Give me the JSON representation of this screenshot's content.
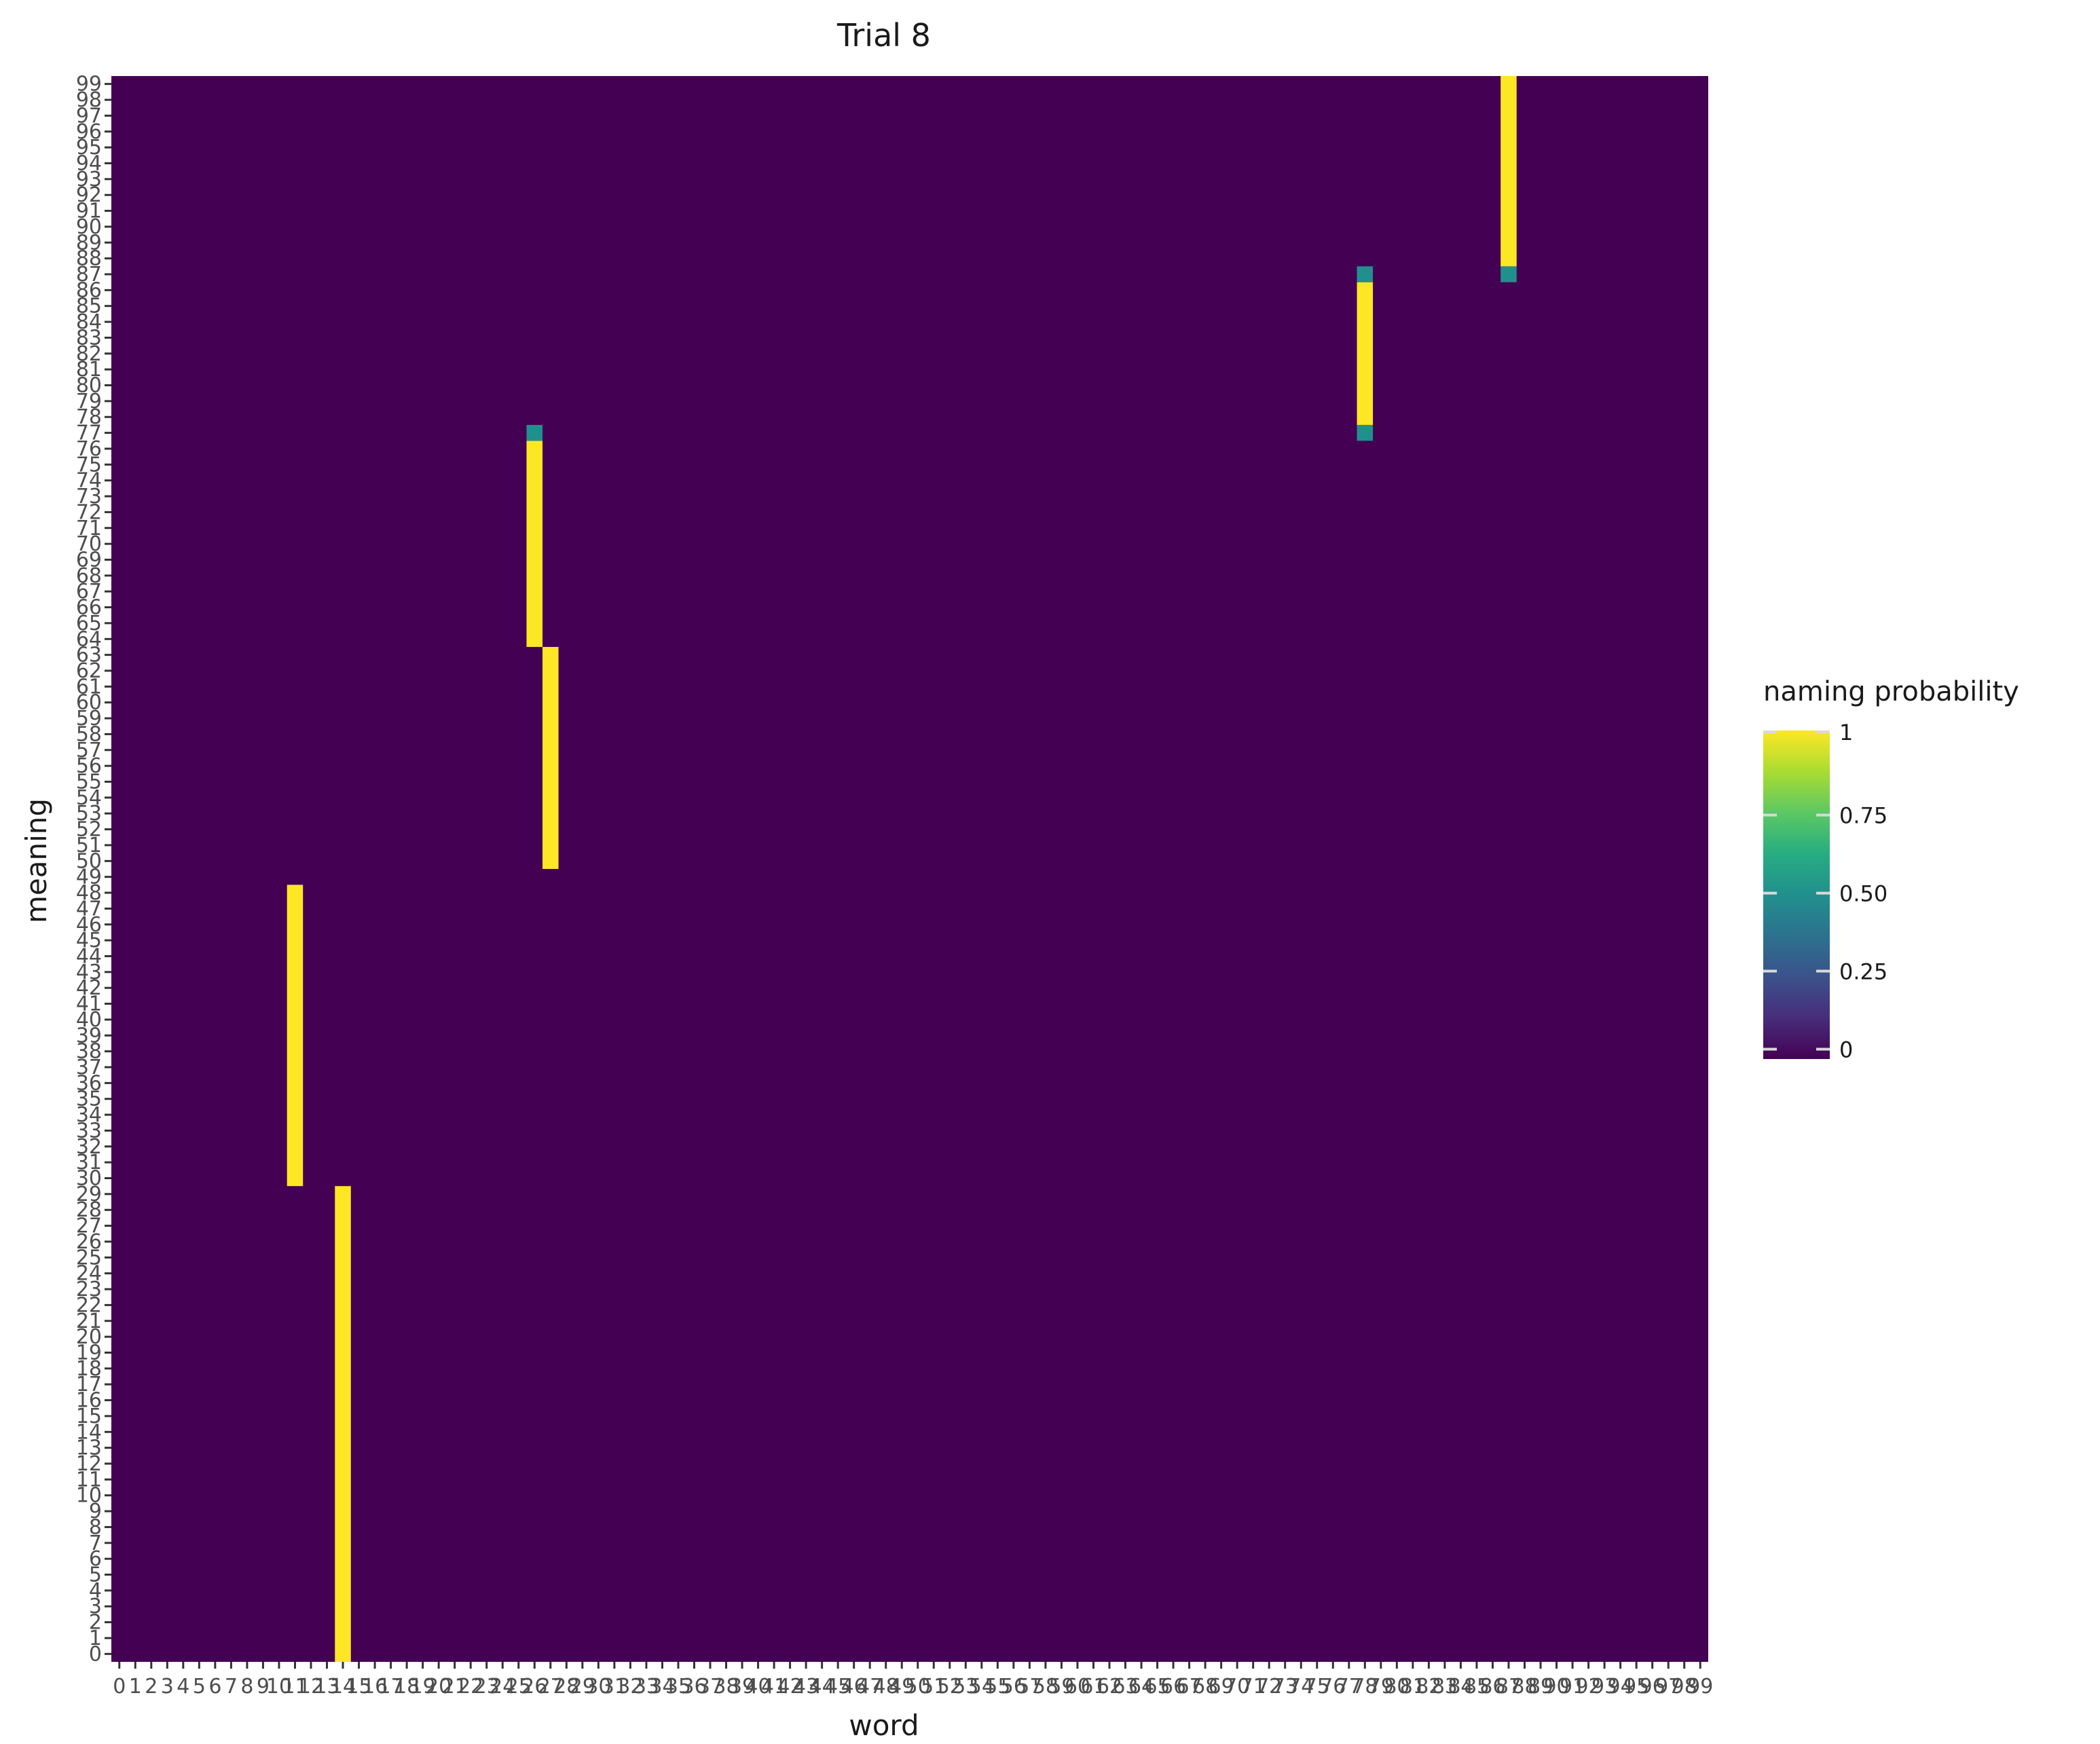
{
  "chart_data": {
    "type": "heatmap",
    "title": "Trial 8",
    "xlabel": "word",
    "ylabel": "meaning",
    "x_range": [
      0,
      99
    ],
    "y_range": [
      0,
      99
    ],
    "background_value": 0,
    "cells": [
      {
        "x": 11,
        "y_from": 30,
        "y_to": 48,
        "value": 1
      },
      {
        "x": 14,
        "y_from": 0,
        "y_to": 29,
        "value": 1
      },
      {
        "x": 26,
        "y_from": 64,
        "y_to": 76,
        "value": 1
      },
      {
        "x": 26,
        "y_from": 77,
        "y_to": 77,
        "value": 0.5
      },
      {
        "x": 27,
        "y_from": 50,
        "y_to": 63,
        "value": 1
      },
      {
        "x": 78,
        "y_from": 77,
        "y_to": 77,
        "value": 0.5
      },
      {
        "x": 78,
        "y_from": 78,
        "y_to": 86,
        "value": 1
      },
      {
        "x": 78,
        "y_from": 87,
        "y_to": 87,
        "value": 0.5
      },
      {
        "x": 87,
        "y_from": 87,
        "y_to": 87,
        "value": 0.5
      },
      {
        "x": 87,
        "y_from": 88,
        "y_to": 99,
        "value": 1
      }
    ],
    "colormap": "viridis",
    "colors": {
      "low": "#440154",
      "mid": "#21908d",
      "high": "#fde725"
    },
    "legend": {
      "title": "naming probability",
      "placement": "right",
      "ticks": [
        {
          "value": 1,
          "label": "1"
        },
        {
          "value": 0.75,
          "label": "0.75"
        },
        {
          "value": 0.5,
          "label": "0.50"
        },
        {
          "value": 0.25,
          "label": "0.25"
        },
        {
          "value": 0,
          "label": "0"
        }
      ]
    },
    "grid": false
  }
}
